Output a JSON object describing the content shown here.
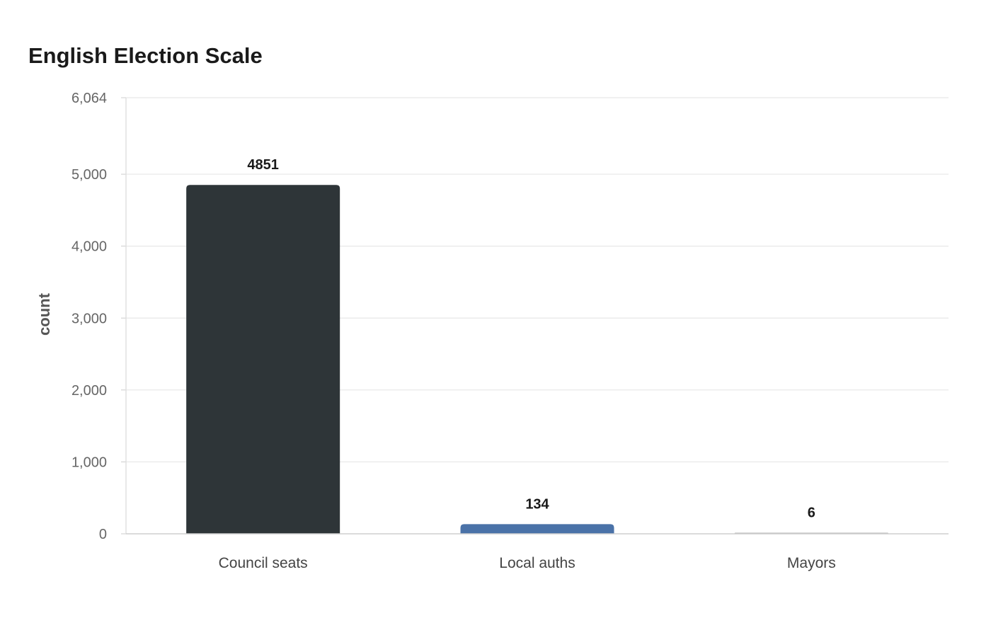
{
  "chart_data": {
    "type": "bar",
    "title": "English Election Scale",
    "xlabel": "",
    "ylabel": "count",
    "categories": [
      "Council seats",
      "Local auths",
      "Mayors"
    ],
    "values": [
      4851,
      134,
      6
    ],
    "data_labels": [
      "4851",
      "134",
      "6"
    ],
    "ylim": [
      0,
      6064
    ],
    "yticks": [
      0,
      1000,
      2000,
      3000,
      4000,
      5000,
      6064
    ],
    "ytick_labels": [
      "0",
      "1,000",
      "2,000",
      "3,000",
      "4,000",
      "5,000",
      "6,064"
    ],
    "colors": [
      "#2e3538",
      "#4a72a8",
      "#b0b0b0"
    ],
    "grid": true,
    "legend": "none"
  }
}
